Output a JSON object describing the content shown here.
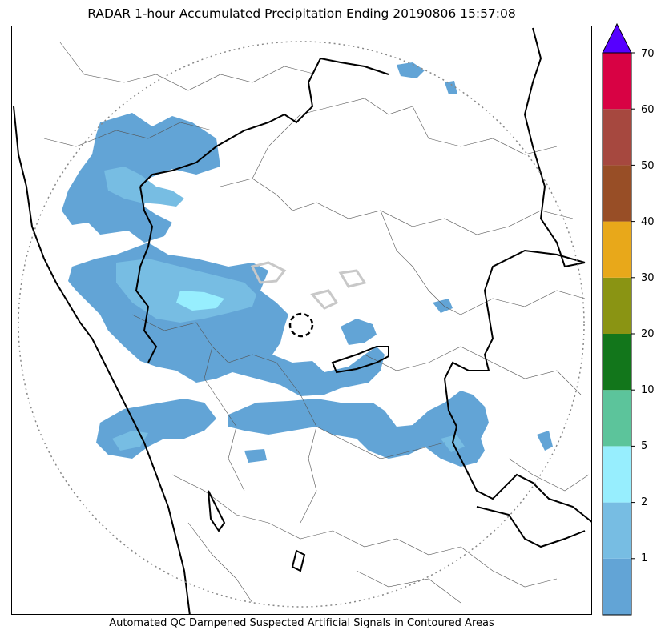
{
  "title": "RADAR 1-hour Accumulated Precipitation Ending 20190806 15:57:08",
  "caption": "Automated QC Dampened Suspected Artificial Signals in Contoured Areas",
  "colorbar": {
    "tick_labels": [
      "70",
      "60",
      "50",
      "40",
      "30",
      "20",
      "10",
      "5",
      "2",
      "1"
    ],
    "bins": [
      {
        "from": 0,
        "to": 1,
        "color": "#62a4d6"
      },
      {
        "from": 1,
        "to": 2,
        "color": "#77bde3"
      },
      {
        "from": 2,
        "to": 5,
        "color": "#97eefe"
      },
      {
        "from": 5,
        "to": 10,
        "color": "#5cc49b"
      },
      {
        "from": 10,
        "to": 20,
        "color": "#12761b"
      },
      {
        "from": 20,
        "to": 30,
        "color": "#8a9413"
      },
      {
        "from": 30,
        "to": 40,
        "color": "#e8a81a"
      },
      {
        "from": 40,
        "to": 50,
        "color": "#984e26"
      },
      {
        "from": 50,
        "to": 60,
        "color": "#a6483f"
      },
      {
        "from": 60,
        "to": 70,
        "color": "#d80244"
      }
    ],
    "extend_color": "#5600ff"
  },
  "map": {
    "range_ring": "dotted",
    "radar_site_marker": "dashed-circle",
    "state_border_color": "#000000",
    "district_border_color": "#555555"
  }
}
